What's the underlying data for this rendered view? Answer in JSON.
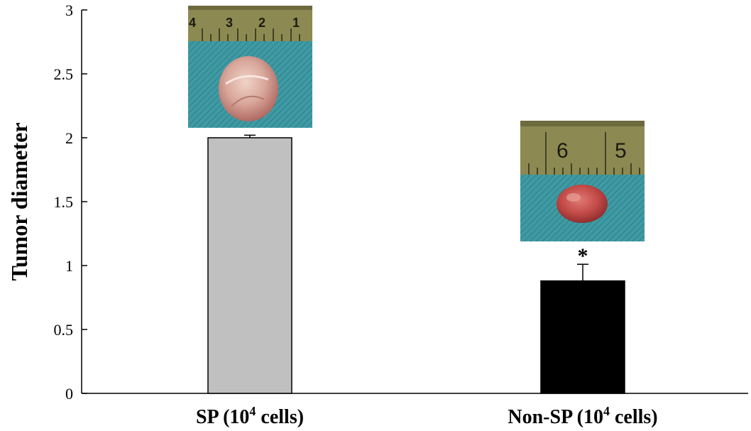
{
  "chart_data": {
    "type": "bar",
    "title": "",
    "ylabel": "Tumor diameter",
    "xlabel": "",
    "ylim": [
      0,
      3
    ],
    "yticks": [
      "0",
      "0.5",
      "1",
      "1.5",
      "2",
      "2.5",
      "3"
    ],
    "categories": [
      {
        "main": "SP (10",
        "sup": "4",
        "rest": " cells)"
      },
      {
        "main": "Non-SP (10",
        "sup": "4",
        "rest": " cells)"
      }
    ],
    "values": [
      2.0,
      0.88
    ],
    "errors": [
      0.02,
      0.13
    ],
    "bar_colors": [
      "#c0c0c0",
      "#000000"
    ],
    "annotations": [
      {
        "category_index": 1,
        "text": "*"
      }
    ],
    "photo_rulers": [
      [
        "4",
        "3",
        "2",
        "1"
      ],
      [
        "6",
        "5"
      ]
    ]
  }
}
